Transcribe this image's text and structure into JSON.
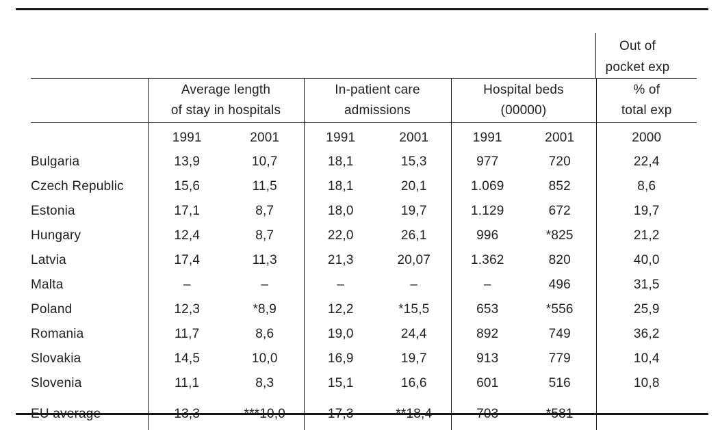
{
  "page": {
    "background": "#ffffff",
    "text_color": "#1f1f1f",
    "line_color": "#161616"
  },
  "table": {
    "overhang_header": {
      "line1": "Out of",
      "line2": "pocket exp"
    },
    "group_headers": [
      {
        "line1": "Average length",
        "line2": "of stay in hospitals"
      },
      {
        "line1": "In-patient care",
        "line2": "admissions"
      },
      {
        "line1": "Hospital beds",
        "line2": "(00000)"
      },
      {
        "line1": "% of",
        "line2": "total exp"
      }
    ],
    "year_row": [
      "1991",
      "2001",
      "1991",
      "2001",
      "1991",
      "2001",
      "2000"
    ],
    "rows": [
      {
        "country": "Bulgaria",
        "values": [
          "13,9",
          "10,7",
          "18,1",
          "15,3",
          "977",
          "720",
          "22,4"
        ]
      },
      {
        "country": "Czech Republic",
        "values": [
          "15,6",
          "11,5",
          "18,1",
          "20,1",
          "1.069",
          "852",
          "8,6"
        ]
      },
      {
        "country": "Estonia",
        "values": [
          "17,1",
          "8,7",
          "18,0",
          "19,7",
          "1.129",
          "672",
          "19,7"
        ]
      },
      {
        "country": "Hungary",
        "values": [
          "12,4",
          "8,7",
          "22,0",
          "26,1",
          "996",
          "*825",
          "21,2"
        ]
      },
      {
        "country": "Latvia",
        "values": [
          "17,4",
          "11,3",
          "21,3",
          "20,07",
          "1.362",
          "820",
          "40,0"
        ]
      },
      {
        "country": "Malta",
        "values": [
          "–",
          "–",
          "–",
          "–",
          "–",
          "496",
          "31,5"
        ]
      },
      {
        "country": "Poland",
        "values": [
          "12,3",
          "*8,9",
          "12,2",
          "*15,5",
          "653",
          "*556",
          "25,9"
        ]
      },
      {
        "country": "Romania",
        "values": [
          "11,7",
          "8,6",
          "19,0",
          "24,4",
          "892",
          "749",
          "36,2"
        ]
      },
      {
        "country": "Slovakia",
        "values": [
          "14,5",
          "10,0",
          "16,9",
          "19,7",
          "913",
          "779",
          "10,4"
        ]
      },
      {
        "country": "Slovenia",
        "values": [
          "11,1",
          "8,3",
          "15,1",
          "16,6",
          "601",
          "516",
          "10,8"
        ]
      },
      {
        "country": "EU average",
        "values": [
          "13,3",
          "***10,0",
          "17,3",
          "**18,4",
          "703",
          "*581",
          "–"
        ]
      }
    ]
  }
}
